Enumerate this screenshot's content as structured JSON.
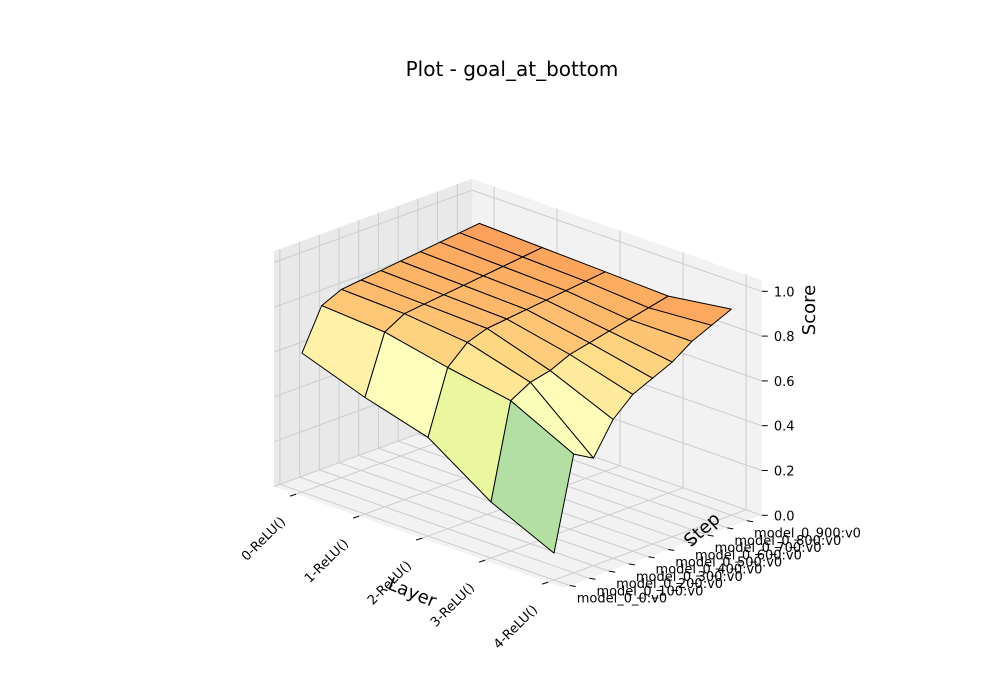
{
  "chart_data": {
    "type": "surface3d",
    "title": "Plot - goal_at_bottom",
    "xlabel": "Layer",
    "ylabel": "Step",
    "zlabel": "Score",
    "x_categories": [
      "0-ReLU()",
      "1-ReLU()",
      "2-ReLU()",
      "3-ReLU()",
      "4-ReLU()"
    ],
    "y_categories": [
      "model_0_0:v0",
      "model_0_100:v0",
      "model_0_200:v0",
      "model_0_300:v0",
      "model_0_400:v0",
      "model_0_500:v0",
      "model_0_600:v0",
      "model_0_700:v0",
      "model_0_800:v0",
      "model_0_900:v0"
    ],
    "z_ticks": [
      "0.0",
      "0.2",
      "0.4",
      "0.6",
      "0.8",
      "1.0"
    ],
    "zlim": [
      0,
      1
    ],
    "grid": true,
    "values": [
      [
        0.62,
        0.52,
        0.44,
        0.25,
        0.12
      ],
      [
        0.8,
        0.78,
        0.72,
        0.67,
        0.53
      ],
      [
        0.84,
        0.83,
        0.8,
        0.72,
        0.48
      ],
      [
        0.85,
        0.84,
        0.83,
        0.74,
        0.62
      ],
      [
        0.86,
        0.85,
        0.84,
        0.78,
        0.7
      ],
      [
        0.87,
        0.86,
        0.85,
        0.8,
        0.74
      ],
      [
        0.88,
        0.87,
        0.86,
        0.82,
        0.78
      ],
      [
        0.89,
        0.88,
        0.87,
        0.84,
        0.84
      ],
      [
        0.9,
        0.89,
        0.88,
        0.86,
        0.88
      ],
      [
        0.91,
        0.9,
        0.89,
        0.88,
        0.92
      ]
    ],
    "colors": {
      "pane": "#f2f2f2",
      "pane_side": "#e9e9e9",
      "grid": "#cccccc",
      "edge": "#000000"
    }
  }
}
